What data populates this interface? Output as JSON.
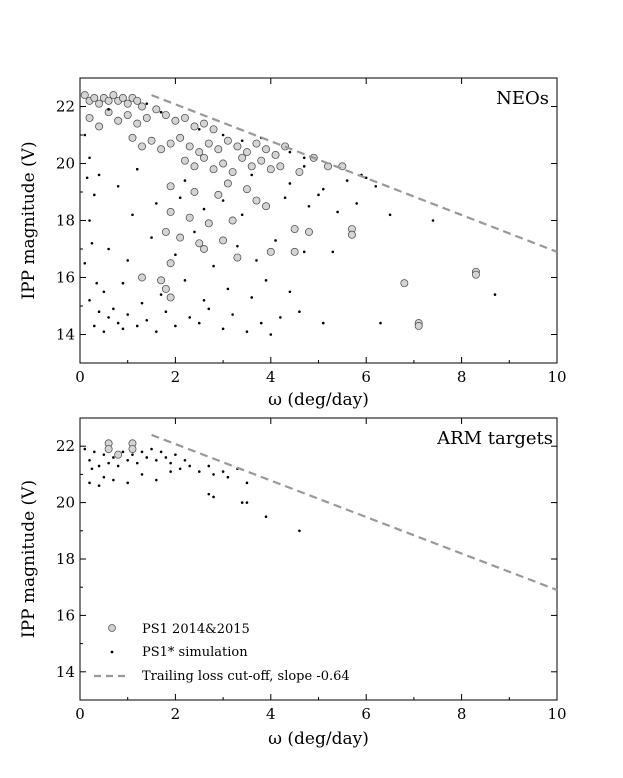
{
  "chart_data": [
    {
      "type": "scatter",
      "title": "NEOs",
      "xlabel": "ω (deg/day)",
      "ylabel": "IPP magnitude (V)",
      "xlim": [
        0,
        10
      ],
      "ylim": [
        13,
        23
      ],
      "x_ticks": [
        0,
        2,
        4,
        6,
        8,
        10
      ],
      "y_ticks": [
        14,
        16,
        18,
        20,
        22
      ],
      "grid": false,
      "series": [
        {
          "marker": "open-circle",
          "color": "#bbbbbb",
          "points": [
            [
              0.1,
              22.4
            ],
            [
              0.2,
              22.2
            ],
            [
              0.3,
              22.3
            ],
            [
              0.4,
              22.1
            ],
            [
              0.5,
              22.3
            ],
            [
              0.6,
              22.2
            ],
            [
              0.7,
              22.4
            ],
            [
              0.8,
              22.2
            ],
            [
              0.9,
              22.3
            ],
            [
              1.0,
              22.1
            ],
            [
              1.1,
              22.3
            ],
            [
              1.2,
              22.2
            ],
            [
              1.3,
              22.0
            ],
            [
              0.2,
              21.6
            ],
            [
              0.4,
              21.3
            ],
            [
              0.6,
              21.8
            ],
            [
              0.8,
              21.5
            ],
            [
              1.0,
              21.7
            ],
            [
              1.2,
              21.4
            ],
            [
              1.4,
              21.6
            ],
            [
              1.6,
              21.9
            ],
            [
              1.8,
              21.7
            ],
            [
              2.0,
              21.5
            ],
            [
              2.2,
              21.6
            ],
            [
              2.4,
              21.3
            ],
            [
              2.6,
              21.4
            ],
            [
              2.8,
              21.2
            ],
            [
              1.1,
              20.9
            ],
            [
              1.3,
              20.6
            ],
            [
              1.5,
              20.8
            ],
            [
              1.7,
              20.5
            ],
            [
              1.9,
              20.7
            ],
            [
              2.1,
              20.9
            ],
            [
              2.3,
              20.6
            ],
            [
              2.5,
              20.4
            ],
            [
              2.7,
              20.7
            ],
            [
              2.9,
              20.5
            ],
            [
              3.1,
              20.8
            ],
            [
              3.3,
              20.6
            ],
            [
              3.5,
              20.4
            ],
            [
              3.7,
              20.7
            ],
            [
              3.9,
              20.5
            ],
            [
              4.1,
              20.3
            ],
            [
              4.3,
              20.6
            ],
            [
              2.2,
              20.1
            ],
            [
              2.4,
              19.9
            ],
            [
              2.6,
              20.2
            ],
            [
              2.8,
              19.8
            ],
            [
              3.0,
              20.0
            ],
            [
              3.2,
              19.7
            ],
            [
              3.4,
              20.2
            ],
            [
              3.6,
              19.9
            ],
            [
              3.8,
              20.1
            ],
            [
              4.0,
              19.8
            ],
            [
              4.2,
              19.9
            ],
            [
              4.6,
              19.7
            ],
            [
              4.9,
              20.2
            ],
            [
              5.2,
              19.9
            ],
            [
              5.5,
              19.9
            ],
            [
              1.9,
              19.2
            ],
            [
              2.4,
              19.0
            ],
            [
              2.9,
              18.9
            ],
            [
              3.1,
              19.3
            ],
            [
              3.5,
              19.1
            ],
            [
              3.7,
              18.7
            ],
            [
              3.9,
              18.5
            ],
            [
              1.9,
              18.3
            ],
            [
              2.3,
              18.1
            ],
            [
              2.7,
              17.9
            ],
            [
              3.2,
              18.0
            ],
            [
              1.8,
              17.6
            ],
            [
              2.1,
              17.4
            ],
            [
              2.5,
              17.2
            ],
            [
              3.0,
              17.3
            ],
            [
              4.5,
              17.7
            ],
            [
              4.8,
              17.6
            ],
            [
              5.7,
              17.7
            ],
            [
              5.7,
              17.5
            ],
            [
              2.6,
              17.0
            ],
            [
              4.0,
              16.9
            ],
            [
              4.5,
              16.9
            ],
            [
              3.3,
              16.7
            ],
            [
              1.9,
              16.5
            ],
            [
              1.3,
              16.0
            ],
            [
              1.8,
              15.6
            ],
            [
              1.9,
              15.3
            ],
            [
              1.7,
              15.9
            ],
            [
              6.8,
              15.8
            ],
            [
              8.3,
              16.2
            ],
            [
              8.3,
              16.1
            ],
            [
              7.1,
              14.4
            ],
            [
              7.1,
              14.3
            ]
          ]
        },
        {
          "marker": "dot",
          "color": "#000000",
          "points": [
            [
              0.1,
              21.0
            ],
            [
              0.2,
              20.2
            ],
            [
              0.15,
              19.5
            ],
            [
              0.3,
              18.9
            ],
            [
              0.2,
              18.0
            ],
            [
              0.25,
              17.2
            ],
            [
              0.1,
              16.5
            ],
            [
              0.35,
              15.8
            ],
            [
              0.2,
              15.2
            ],
            [
              0.4,
              14.8
            ],
            [
              0.3,
              14.3
            ],
            [
              0.5,
              14.1
            ],
            [
              0.6,
              14.6
            ],
            [
              0.7,
              14.9
            ],
            [
              0.8,
              14.4
            ],
            [
              0.9,
              14.2
            ],
            [
              1.0,
              14.7
            ],
            [
              1.2,
              14.3
            ],
            [
              1.4,
              14.5
            ],
            [
              1.6,
              14.1
            ],
            [
              1.8,
              14.8
            ],
            [
              2.0,
              14.3
            ],
            [
              2.3,
              14.6
            ],
            [
              2.5,
              14.4
            ],
            [
              2.7,
              14.9
            ],
            [
              3.0,
              14.2
            ],
            [
              3.2,
              14.7
            ],
            [
              3.5,
              14.1
            ],
            [
              3.8,
              14.4
            ],
            [
              4.0,
              14.0
            ],
            [
              4.2,
              14.6
            ],
            [
              4.6,
              14.8
            ],
            [
              5.1,
              14.4
            ],
            [
              6.3,
              14.4
            ],
            [
              0.5,
              15.5
            ],
            [
              0.9,
              15.8
            ],
            [
              1.3,
              15.1
            ],
            [
              1.7,
              15.4
            ],
            [
              2.2,
              15.9
            ],
            [
              2.6,
              15.2
            ],
            [
              3.1,
              15.6
            ],
            [
              3.6,
              15.3
            ],
            [
              3.9,
              15.9
            ],
            [
              4.4,
              15.5
            ],
            [
              0.6,
              17.0
            ],
            [
              1.0,
              16.6
            ],
            [
              1.5,
              17.4
            ],
            [
              2.0,
              16.8
            ],
            [
              2.4,
              17.6
            ],
            [
              2.8,
              16.4
            ],
            [
              3.3,
              17.1
            ],
            [
              3.7,
              16.6
            ],
            [
              4.1,
              17.3
            ],
            [
              4.7,
              16.9
            ],
            [
              5.3,
              16.9
            ],
            [
              1.1,
              18.2
            ],
            [
              1.6,
              18.6
            ],
            [
              2.1,
              18.8
            ],
            [
              2.6,
              18.4
            ],
            [
              3.0,
              18.7
            ],
            [
              3.4,
              18.2
            ],
            [
              4.3,
              18.8
            ],
            [
              4.8,
              18.5
            ],
            [
              5.0,
              18.9
            ],
            [
              5.4,
              18.3
            ],
            [
              5.8,
              18.6
            ],
            [
              6.5,
              18.2
            ],
            [
              7.4,
              18.0
            ],
            [
              0.4,
              19.6
            ],
            [
              0.8,
              19.2
            ],
            [
              1.2,
              19.8
            ],
            [
              2.2,
              19.4
            ],
            [
              3.6,
              19.6
            ],
            [
              4.4,
              19.3
            ],
            [
              5.1,
              19.1
            ],
            [
              5.6,
              19.4
            ],
            [
              6.0,
              19.5
            ],
            [
              6.2,
              19.2
            ],
            [
              4.7,
              19.9
            ],
            [
              5.9,
              19.6
            ],
            [
              0.6,
              21.9
            ],
            [
              1.4,
              22.1
            ],
            [
              1.7,
              21.8
            ],
            [
              2.5,
              21.2
            ],
            [
              3.0,
              21.0
            ],
            [
              3.4,
              20.8
            ],
            [
              3.8,
              20.9
            ],
            [
              4.4,
              20.4
            ],
            [
              4.7,
              20.2
            ],
            [
              8.7,
              15.4
            ]
          ]
        }
      ],
      "trend_line": {
        "x": [
          1.5,
          10
        ],
        "y": [
          22.4,
          16.9
        ],
        "style": "dashed",
        "color": "#999999"
      }
    },
    {
      "type": "scatter",
      "title": "ARM targets",
      "xlabel": "ω (deg/day)",
      "ylabel": "IPP magnitude (V)",
      "xlim": [
        0,
        10
      ],
      "ylim": [
        13,
        23
      ],
      "x_ticks": [
        0,
        2,
        4,
        6,
        8,
        10
      ],
      "y_ticks": [
        14,
        16,
        18,
        20,
        22
      ],
      "grid": false,
      "series": [
        {
          "marker": "open-circle",
          "color": "#bbbbbb",
          "points": [
            [
              0.6,
              22.1
            ],
            [
              0.6,
              21.9
            ],
            [
              0.8,
              21.7
            ],
            [
              1.1,
              22.1
            ],
            [
              1.1,
              21.9
            ]
          ]
        },
        {
          "marker": "dot",
          "color": "#000000",
          "points": [
            [
              0.1,
              21.9
            ],
            [
              0.2,
              21.5
            ],
            [
              0.3,
              21.8
            ],
            [
              0.25,
              21.2
            ],
            [
              0.4,
              21.3
            ],
            [
              0.5,
              21.7
            ],
            [
              0.6,
              21.4
            ],
            [
              0.7,
              21.6
            ],
            [
              0.8,
              21.3
            ],
            [
              0.9,
              21.8
            ],
            [
              1.0,
              21.5
            ],
            [
              1.1,
              21.7
            ],
            [
              1.2,
              21.4
            ],
            [
              1.3,
              21.8
            ],
            [
              1.4,
              21.6
            ],
            [
              1.5,
              21.9
            ],
            [
              1.6,
              21.5
            ],
            [
              1.7,
              21.8
            ],
            [
              1.8,
              21.6
            ],
            [
              1.9,
              21.4
            ],
            [
              2.0,
              21.7
            ],
            [
              2.1,
              21.2
            ],
            [
              2.2,
              21.5
            ],
            [
              2.3,
              21.3
            ],
            [
              2.5,
              21.1
            ],
            [
              2.7,
              21.3
            ],
            [
              2.8,
              21.0
            ],
            [
              3.0,
              21.1
            ],
            [
              3.1,
              20.9
            ],
            [
              3.3,
              21.2
            ],
            [
              3.5,
              20.7
            ],
            [
              0.2,
              20.7
            ],
            [
              0.4,
              20.6
            ],
            [
              0.5,
              20.9
            ],
            [
              0.7,
              20.8
            ],
            [
              1.0,
              20.7
            ],
            [
              1.3,
              21.0
            ],
            [
              1.6,
              20.8
            ],
            [
              1.9,
              21.1
            ],
            [
              2.7,
              20.3
            ],
            [
              2.8,
              20.2
            ],
            [
              3.4,
              20.0
            ],
            [
              3.5,
              20.0
            ],
            [
              3.9,
              19.5
            ],
            [
              4.6,
              19.0
            ]
          ]
        }
      ],
      "trend_line": {
        "x": [
          1.5,
          10
        ],
        "y": [
          22.4,
          16.9
        ],
        "style": "dashed",
        "color": "#999999"
      },
      "legend": {
        "placement": "bottom-left",
        "entries": [
          "PS1 2014&2015",
          "PS1* simulation",
          "Trailing loss cut-off, slope -0.64"
        ]
      }
    }
  ]
}
